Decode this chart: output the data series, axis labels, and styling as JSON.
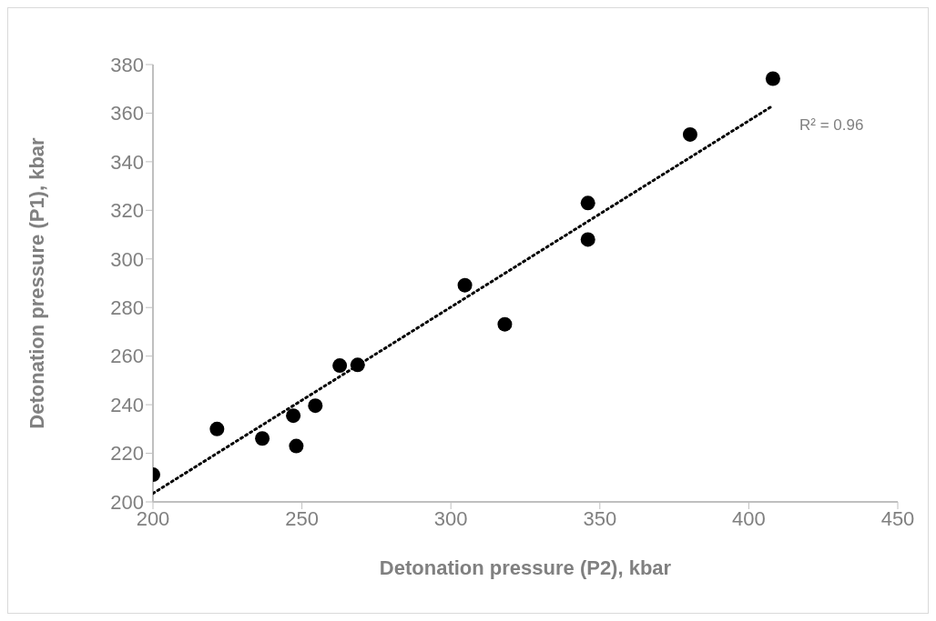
{
  "chart_data": {
    "type": "scatter",
    "xlabel": "Detonation pressure (P2), kbar",
    "ylabel": "Detonation pressure (P1), kbar",
    "xlim": [
      200,
      450
    ],
    "xticks": [
      200,
      250,
      300,
      350,
      400,
      450
    ],
    "ylim": [
      200,
      380
    ],
    "yticks": [
      200,
      220,
      240,
      260,
      280,
      300,
      320,
      340,
      360,
      380
    ],
    "grid": false,
    "legend": false,
    "series": [
      {
        "marker": "circle",
        "color": "#000000",
        "x": [
          200,
          221.5,
          236.7,
          247.1,
          248.1,
          254.5,
          262.7,
          268.7,
          304.7,
          318.1,
          346,
          346,
          380.3,
          408.1
        ],
        "values": [
          211.2,
          230,
          226.1,
          235.5,
          223,
          239.6,
          256.1,
          256.4,
          289.2,
          273.1,
          323,
          308,
          351.2,
          374.2
        ]
      },
      {
        "type": "line",
        "marker": "none",
        "line_style": "dotted",
        "color": "#000000",
        "x": [
          200,
          408
        ],
        "values": [
          203.5,
          363
        ]
      }
    ],
    "annotations": [
      "R² = 0.96"
    ]
  }
}
